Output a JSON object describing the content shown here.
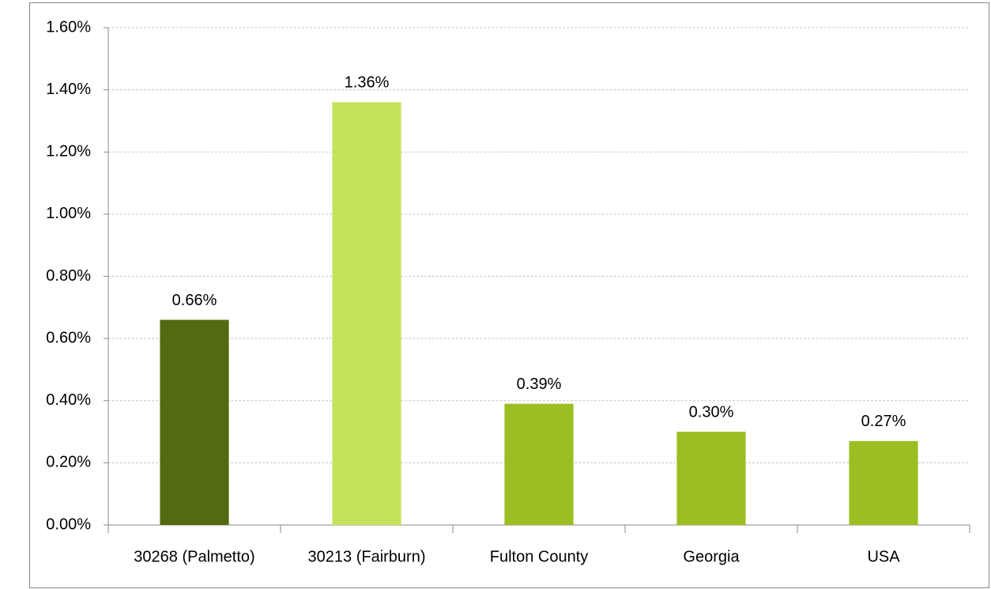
{
  "chart_data": {
    "type": "bar",
    "categories": [
      "30268 (Palmetto)",
      "30213 (Fairburn)",
      "Fulton County",
      "Georgia",
      "USA"
    ],
    "values": [
      0.66,
      1.36,
      0.39,
      0.3,
      0.27
    ],
    "value_labels": [
      "0.66%",
      "1.36%",
      "0.39%",
      "0.30%",
      "0.27%"
    ],
    "colors": [
      "#546a12",
      "#c5e35a",
      "#9bbf22",
      "#9bbf22",
      "#9bbf22"
    ],
    "ylim": [
      0,
      1.6
    ],
    "yticks": [
      {
        "value": 0,
        "label": "0.00%"
      },
      {
        "value": 0.2,
        "label": "0.20%"
      },
      {
        "value": 0.4,
        "label": "0.40%"
      },
      {
        "value": 0.6,
        "label": "0.60%"
      },
      {
        "value": 0.8,
        "label": "0.80%"
      },
      {
        "value": 1.0,
        "label": "1.00%"
      },
      {
        "value": 1.2,
        "label": "1.20%"
      },
      {
        "value": 1.4,
        "label": "1.40%"
      },
      {
        "value": 1.6,
        "label": "1.60%"
      }
    ],
    "grid": true
  }
}
